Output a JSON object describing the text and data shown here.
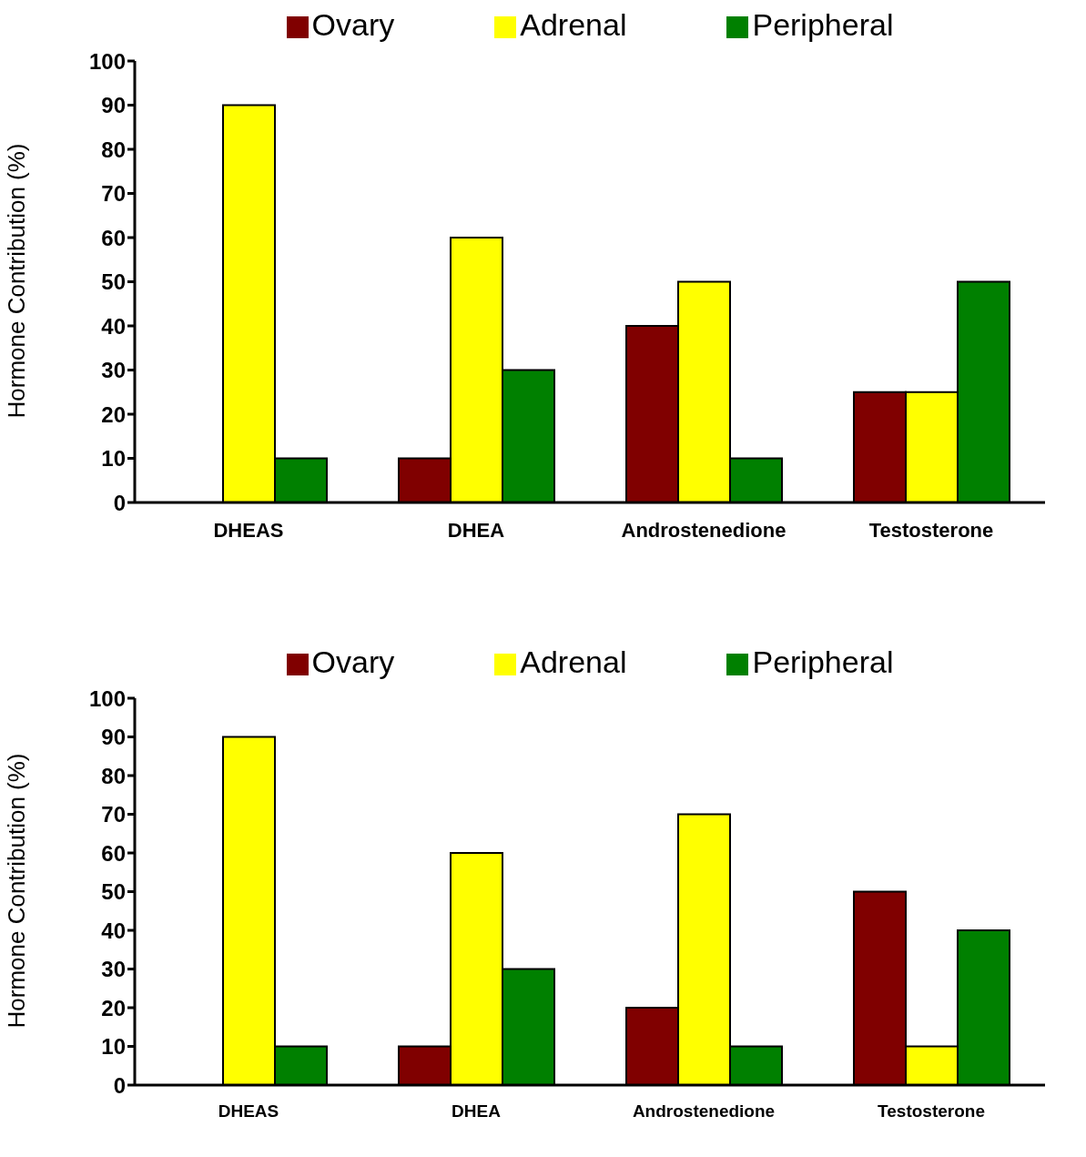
{
  "chart_data": [
    {
      "type": "bar",
      "ylabel": "Hormone Contribution (%)",
      "categories": [
        "DHEAS",
        "DHEA",
        "Androstenedione",
        "Testosterone"
      ],
      "series": [
        {
          "name": "Ovary",
          "color": "#800000",
          "values": [
            0,
            10,
            40,
            25
          ]
        },
        {
          "name": "Adrenal",
          "color": "#ffff00",
          "values": [
            90,
            60,
            50,
            25
          ]
        },
        {
          "name": "Peripheral",
          "color": "#008000",
          "values": [
            10,
            30,
            10,
            50
          ]
        }
      ],
      "ylim": [
        0,
        100
      ],
      "yticks": [
        0,
        10,
        20,
        30,
        40,
        50,
        60,
        70,
        80,
        90,
        100
      ],
      "legend": "top"
    },
    {
      "type": "bar",
      "ylabel": "Hormone Contribution (%)",
      "categories": [
        "DHEAS",
        "DHEA",
        "Androstenedione",
        "Testosterone"
      ],
      "series": [
        {
          "name": "Ovary",
          "color": "#800000",
          "values": [
            0,
            10,
            20,
            50
          ]
        },
        {
          "name": "Adrenal",
          "color": "#ffff00",
          "values": [
            90,
            60,
            70,
            10
          ]
        },
        {
          "name": "Peripheral",
          "color": "#008000",
          "values": [
            10,
            30,
            10,
            40
          ]
        }
      ],
      "ylim": [
        0,
        100
      ],
      "yticks": [
        0,
        10,
        20,
        30,
        40,
        50,
        60,
        70,
        80,
        90,
        100
      ],
      "legend": "top"
    }
  ]
}
